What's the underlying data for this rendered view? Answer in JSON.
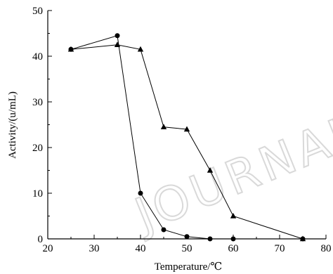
{
  "chart_data": {
    "type": "line",
    "title": "",
    "xlabel": "Temperature/℃",
    "ylabel": "Activity/(u/mL)",
    "xlim": [
      20,
      80
    ],
    "ylim": [
      0,
      50
    ],
    "x_ticks": [
      20,
      30,
      40,
      50,
      60,
      70,
      80
    ],
    "y_ticks": [
      0,
      10,
      20,
      30,
      40,
      50
    ],
    "grid": false,
    "legend": "none",
    "series": [
      {
        "marker": "circle",
        "color": "#000000",
        "x": [
          25,
          35,
          40,
          45,
          50,
          55,
          60,
          75
        ],
        "y": [
          41.5,
          44.5,
          10,
          2,
          0.5,
          0,
          0,
          0
        ]
      },
      {
        "marker": "triangle",
        "color": "#000000",
        "x": [
          25,
          35,
          40,
          45,
          50,
          55,
          60,
          75
        ],
        "y": [
          41.5,
          42.5,
          41.5,
          24.5,
          24,
          15,
          5,
          0
        ]
      }
    ]
  },
  "watermark": "JOURNAL"
}
